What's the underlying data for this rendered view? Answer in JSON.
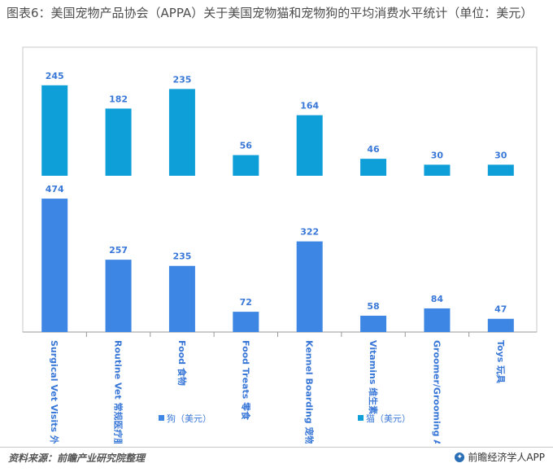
{
  "title": "图表6：美国宠物产品协会（APPA）关于美国宠物猫和宠物狗的平均消费水平统计（单位：美元）",
  "source": "资料来源：前瞻产业研究院整理",
  "brand": "前瞻经济学人APP",
  "colors": {
    "cat": "#0f9fd8",
    "dog": "#3e86e4",
    "label": "#3a78d8",
    "frame": "#c8c8c8"
  },
  "chart_data": {
    "type": "bar",
    "categories": [
      "Surgical Vet Visits 外科医疗服务",
      "Routine Vet 常规医疗服务",
      "Food 食物",
      "Food Treats 零食",
      "Kennel Boarding 宠物寄宿",
      "Vitamins 维生素",
      "Groomer/Grooming Aids",
      "Toys 玩具"
    ],
    "series": [
      {
        "name": "猫（美元）",
        "values": [
          245,
          182,
          235,
          56,
          164,
          46,
          30,
          30
        ]
      },
      {
        "name": "狗（美元）",
        "values": [
          474,
          257,
          235,
          72,
          322,
          58,
          84,
          47
        ]
      }
    ],
    "legend": [
      "狗（美元）",
      "猫（美元）"
    ],
    "legend_position": "bottom",
    "grid": false
  }
}
